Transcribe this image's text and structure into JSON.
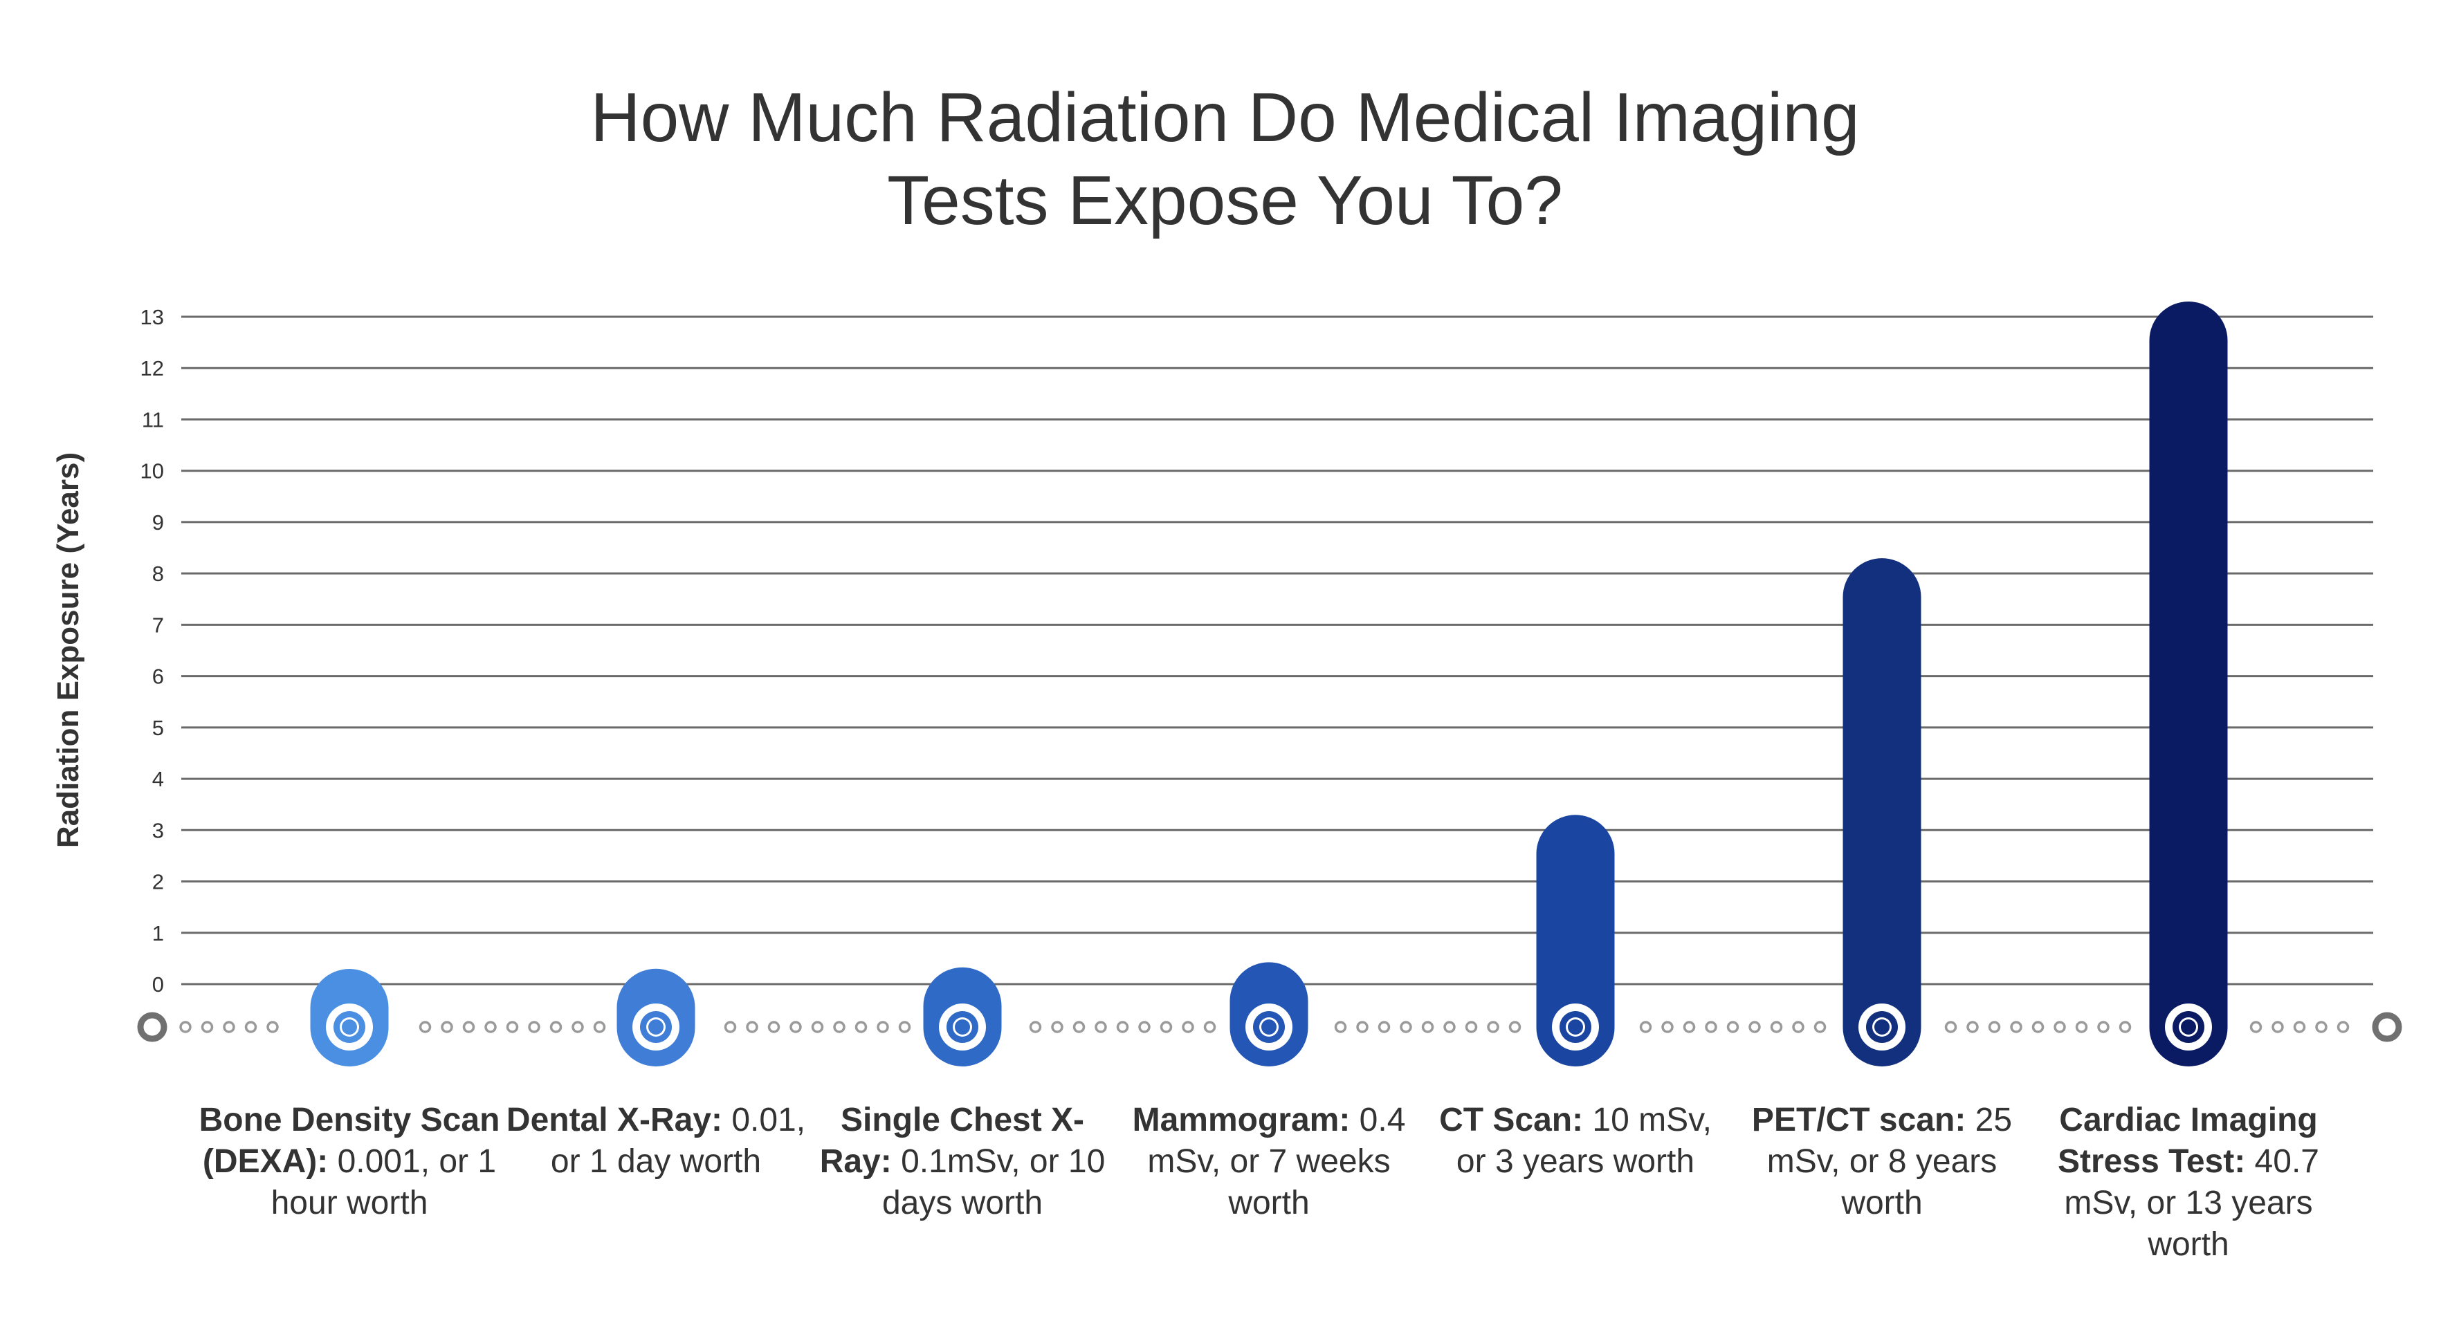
{
  "chart_data": {
    "type": "bar",
    "title_lines": [
      "How Much Radiation Do Medical Imaging",
      "Tests Expose You To?"
    ],
    "ylabel": "Radiation Exposure (Years)",
    "ylim": [
      0,
      13
    ],
    "yticks": [
      "0",
      "1",
      "2",
      "3",
      "4",
      "5",
      "6",
      "7",
      "8",
      "9",
      "10",
      "11",
      "12",
      "13"
    ],
    "grid": true,
    "categories": [
      {
        "bold": "Bone Density Scan (DEXA):",
        "text": " 0.001, or 1 hour worth",
        "value": 0.0001,
        "color": "#4b8fe3"
      },
      {
        "bold": "Dental X-Ray:",
        "text": " 0.01, or 1 day worth",
        "value": 0.003,
        "color": "#3f7dd6"
      },
      {
        "bold": "Single Chest X-Ray:",
        "text": " 0.1mSv, or 10 days worth",
        "value": 0.03,
        "color": "#2f6ac6"
      },
      {
        "bold": "Mammogram:",
        "text": " 0.4 mSv, or 7 weeks worth",
        "value": 0.13,
        "color": "#2456b5"
      },
      {
        "bold": "CT Scan:",
        "text": " 10 mSv, or 3 years worth",
        "value": 3,
        "color": "#1a45a0"
      },
      {
        "bold": "PET/CT scan:",
        "text": " 25 mSv, or 8 years worth",
        "value": 8,
        "color": "#12307e"
      },
      {
        "bold": "Cardiac Imaging Stress Test:",
        "text": " 40.7 mSv, or 13 years worth",
        "value": 13,
        "color": "#0a1a63"
      }
    ],
    "track_color": "#9a9a9a",
    "grid_color": "#6a6a6a"
  }
}
